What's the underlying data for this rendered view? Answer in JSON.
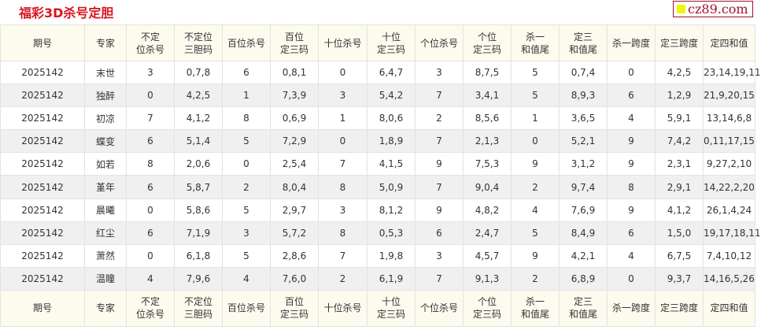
{
  "title": "福彩3D杀号定胆",
  "logo": {
    "text": "cz89.com",
    "square_color": "#f5f500"
  },
  "colors": {
    "title": "#d9141e",
    "header_bg": "#fdfaee",
    "stripe": "#f0f0f0"
  },
  "headers": [
    [
      "期号"
    ],
    [
      "专家"
    ],
    [
      "不定",
      "位杀号"
    ],
    [
      "不定位",
      "三胆码"
    ],
    [
      "百位杀号"
    ],
    [
      "百位",
      "定三码"
    ],
    [
      "十位杀号"
    ],
    [
      "十位",
      "定三码"
    ],
    [
      "个位杀号"
    ],
    [
      "个位",
      "定三码"
    ],
    [
      "杀一",
      "和值尾"
    ],
    [
      "定三",
      "和值尾"
    ],
    [
      "杀一跨度"
    ],
    [
      "定三跨度"
    ],
    [
      "定四和值"
    ]
  ],
  "rows": [
    [
      "2025142",
      "末世",
      "3",
      "0,7,8",
      "6",
      "0,8,1",
      "0",
      "6,4,7",
      "3",
      "8,7,5",
      "5",
      "0,7,4",
      "0",
      "4,2,5",
      "23,14,19,11"
    ],
    [
      "2025142",
      "独醉",
      "0",
      "4,2,5",
      "1",
      "7,3,9",
      "3",
      "5,4,2",
      "7",
      "3,4,1",
      "5",
      "8,9,3",
      "6",
      "1,2,9",
      "21,9,20,15"
    ],
    [
      "2025142",
      "初凉",
      "7",
      "4,1,2",
      "8",
      "0,6,9",
      "1",
      "8,0,6",
      "2",
      "8,5,6",
      "1",
      "3,6,5",
      "4",
      "5,9,1",
      "13,14,6,8"
    ],
    [
      "2025142",
      "蝶变",
      "6",
      "5,1,4",
      "5",
      "7,2,9",
      "0",
      "1,8,9",
      "7",
      "2,1,3",
      "0",
      "5,2,1",
      "9",
      "7,4,2",
      "0,11,17,15"
    ],
    [
      "2025142",
      "如若",
      "8",
      "2,0,6",
      "0",
      "2,5,4",
      "7",
      "4,1,5",
      "9",
      "7,5,3",
      "9",
      "3,1,2",
      "9",
      "2,3,1",
      "9,27,2,10"
    ],
    [
      "2025142",
      "堇年",
      "6",
      "5,8,7",
      "2",
      "8,0,4",
      "8",
      "5,0,9",
      "7",
      "9,0,4",
      "2",
      "9,7,4",
      "8",
      "2,9,1",
      "14,22,2,20"
    ],
    [
      "2025142",
      "晨曦",
      "0",
      "5,8,6",
      "5",
      "2,9,7",
      "3",
      "8,1,2",
      "9",
      "4,8,2",
      "4",
      "7,6,9",
      "9",
      "4,1,2",
      "26,1,4,24"
    ],
    [
      "2025142",
      "红尘",
      "6",
      "7,1,9",
      "3",
      "5,7,2",
      "8",
      "0,5,3",
      "6",
      "2,4,7",
      "5",
      "8,4,9",
      "6",
      "1,5,0",
      "19,17,18,11"
    ],
    [
      "2025142",
      "萧然",
      "0",
      "6,1,8",
      "5",
      "2,8,6",
      "7",
      "1,9,8",
      "3",
      "4,5,7",
      "9",
      "4,2,1",
      "4",
      "6,7,5",
      "7,4,10,12"
    ],
    [
      "2025142",
      "温瞳",
      "4",
      "7,9,6",
      "4",
      "7,6,0",
      "2",
      "6,1,9",
      "7",
      "9,1,3",
      "2",
      "6,8,9",
      "0",
      "9,3,7",
      "14,16,5,26"
    ]
  ]
}
